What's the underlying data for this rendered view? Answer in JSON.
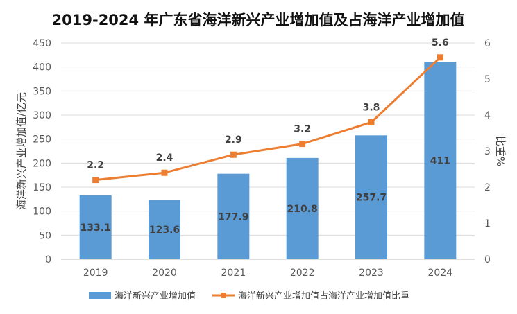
{
  "chart_data": {
    "type": "bar",
    "title": "2019-2024 年广东省海洋新兴产业增加值及占海洋产业增加值",
    "categories": [
      "2019",
      "2020",
      "2021",
      "2022",
      "2023",
      "2024"
    ],
    "series": [
      {
        "name": "海洋新兴产业增加值",
        "type": "bar",
        "axis": "left",
        "values": [
          133.1,
          123.6,
          177.9,
          210.8,
          257.7,
          411
        ],
        "labels": [
          "133.1",
          "123.6",
          "177.9",
          "210.8",
          "257.7",
          "411"
        ],
        "color": "#5B9BD5"
      },
      {
        "name": "海洋新兴产业增加值占海洋产业增加值比重",
        "type": "line",
        "axis": "right",
        "values": [
          2.2,
          2.4,
          2.9,
          3.2,
          3.8,
          5.6
        ],
        "labels": [
          "2.2",
          "2.4",
          "2.9",
          "3.2",
          "3.8",
          "5.6"
        ],
        "color": "#ED7D31"
      }
    ],
    "y_left": {
      "label": "海洋新兴产业增加值/亿元",
      "ylim": [
        0,
        450
      ],
      "ticks": [
        "0",
        "50",
        "100",
        "150",
        "200",
        "250",
        "300",
        "350",
        "400",
        "450"
      ]
    },
    "y_right": {
      "label": "比重%",
      "ylim": [
        0,
        6
      ],
      "ticks": [
        "0",
        "1",
        "2",
        "3",
        "4",
        "5",
        "6"
      ]
    },
    "grid": true,
    "legend": "bottom",
    "gridline_color": "#D9D9D9"
  }
}
